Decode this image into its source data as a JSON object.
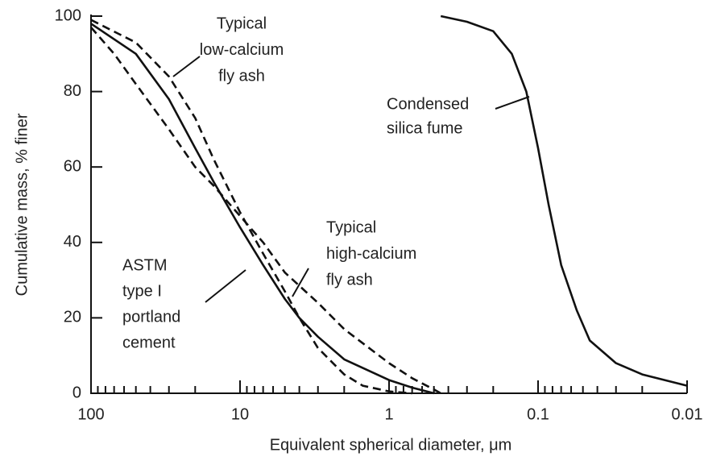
{
  "chart_data": {
    "type": "line",
    "x_label": "Equivalent spherical diameter, μm",
    "y_label": "Cumulative mass, % finer",
    "log_x": true,
    "xlim": [
      100,
      0.01
    ],
    "xticks": [
      100,
      10,
      1,
      0.1,
      0.01
    ],
    "ylim": [
      0,
      100
    ],
    "yticks": [
      0,
      20,
      40,
      60,
      80,
      100
    ],
    "series": [
      {
        "label": [
          "Typical",
          "low-calcium",
          "fly ash"
        ],
        "dash": true,
        "color": "#111",
        "x": [
          100,
          50,
          30,
          20,
          15,
          10,
          7,
          5,
          4,
          3,
          2,
          1.5,
          1,
          0.7
        ],
        "values": [
          99,
          93,
          84,
          73,
          62,
          48,
          37,
          27,
          20,
          12,
          5,
          2,
          0.5,
          0
        ]
      },
      {
        "label": [
          "Condensed",
          "silica fume"
        ],
        "dash": false,
        "color": "#111",
        "x": [
          0.45,
          0.3,
          0.2,
          0.15,
          0.12,
          0.1,
          0.085,
          0.07,
          0.055,
          0.045,
          0.03,
          0.02,
          0.01
        ],
        "values": [
          100,
          98.5,
          96,
          90,
          80,
          65,
          50,
          34,
          22,
          14,
          8,
          5,
          2
        ]
      },
      {
        "label": [
          "Typical",
          "high-calcium",
          "fly ash"
        ],
        "dash": true,
        "color": "#111",
        "x": [
          100,
          70,
          50,
          30,
          20,
          15,
          10,
          7,
          5,
          3,
          2,
          1,
          0.7,
          0.5,
          0.45
        ],
        "values": [
          97,
          90,
          82,
          70,
          60,
          55,
          47,
          40,
          32,
          24,
          17,
          8,
          4,
          1,
          0
        ]
      },
      {
        "label": [
          "ASTM",
          "type I",
          "portland",
          "cement"
        ],
        "dash": false,
        "color": "#111",
        "x": [
          100,
          50,
          30,
          20,
          15,
          10,
          7,
          5,
          4,
          3,
          2,
          1,
          0.7,
          0.5
        ],
        "values": [
          98,
          90,
          78,
          65,
          56,
          44,
          34,
          25,
          20,
          15,
          9,
          3.5,
          1.5,
          0
        ]
      }
    ]
  }
}
